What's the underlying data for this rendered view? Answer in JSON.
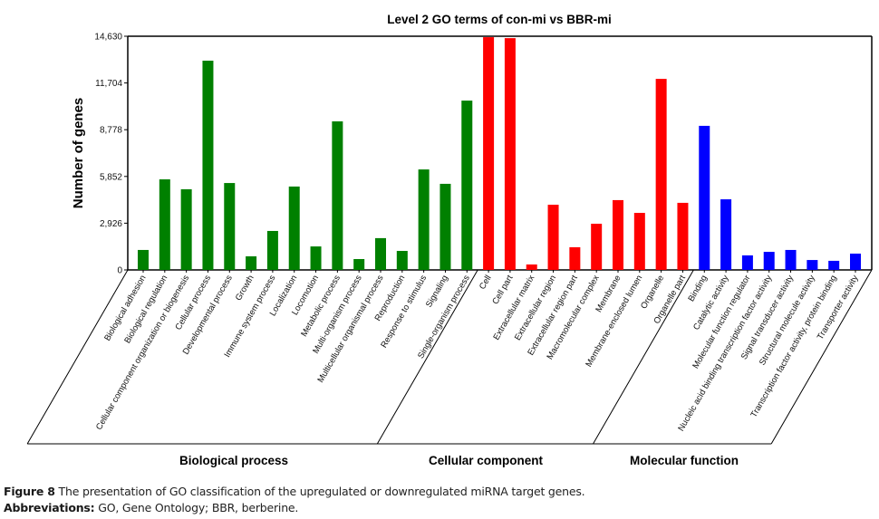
{
  "chart_data": {
    "type": "bar",
    "title": "Level 2 GO terms of con-mi vs BBR-mi",
    "xlabel": "",
    "ylabel": "Number of genes",
    "ylim": [
      0,
      14630
    ],
    "yticks": [
      0,
      2926,
      5852,
      8778,
      11704,
      14630
    ],
    "ytick_labels": [
      "0",
      "2,926",
      "5,852",
      "8,778",
      "11,704",
      "14,630"
    ],
    "grid": false,
    "groups": [
      {
        "name": "Biological process",
        "color": "#008000",
        "categories": [
          "Biological adhesion",
          "Biological regulation",
          "Cellular component organization or biogenesis",
          "Cellular process",
          "Developmental process",
          "Growth",
          "Immune system process",
          "Localization",
          "Locomotion",
          "Metabolic process",
          "Multi-organism process",
          "Multicellular organismal process",
          "Reproduction",
          "Response to stimulus",
          "Signaling",
          "Single-organism process"
        ],
        "values": [
          1250,
          5670,
          5050,
          13100,
          5440,
          850,
          2440,
          5220,
          1470,
          9300,
          680,
          1990,
          1190,
          6290,
          5390,
          10600
        ]
      },
      {
        "name": "Cellular component",
        "color": "#ff0000",
        "categories": [
          "Cell",
          "Cell part",
          "Extracellular matrix",
          "Extracellular region",
          "Extracellular region part",
          "Macromolecular complex",
          "Membrane",
          "Membrane-enclosed lumen",
          "Organelle",
          "Organelle part"
        ],
        "values": [
          14570,
          14510,
          340,
          4080,
          1420,
          2890,
          4370,
          3570,
          11960,
          4200
        ]
      },
      {
        "name": "Molecular function",
        "color": "#0000ff",
        "categories": [
          "Binding",
          "Catalytic activity",
          "Molecular function regulator",
          "Nucleic acid binding transcription factor activity",
          "Signal transducer activity",
          "Structural molecule activity",
          "Transcription factor activity, protein binding",
          "Transporter activity"
        ],
        "values": [
          9020,
          4420,
          910,
          1130,
          1250,
          620,
          570,
          1020
        ]
      }
    ]
  },
  "caption": {
    "figure_label": "Figure 8",
    "figure_text": " The presentation of GO classification of the upregulated or downregulated miRNA target genes.",
    "abbrev_label": "Abbreviations:",
    "abbrev_text": " GO, Gene Ontology; BBR, berberine."
  }
}
